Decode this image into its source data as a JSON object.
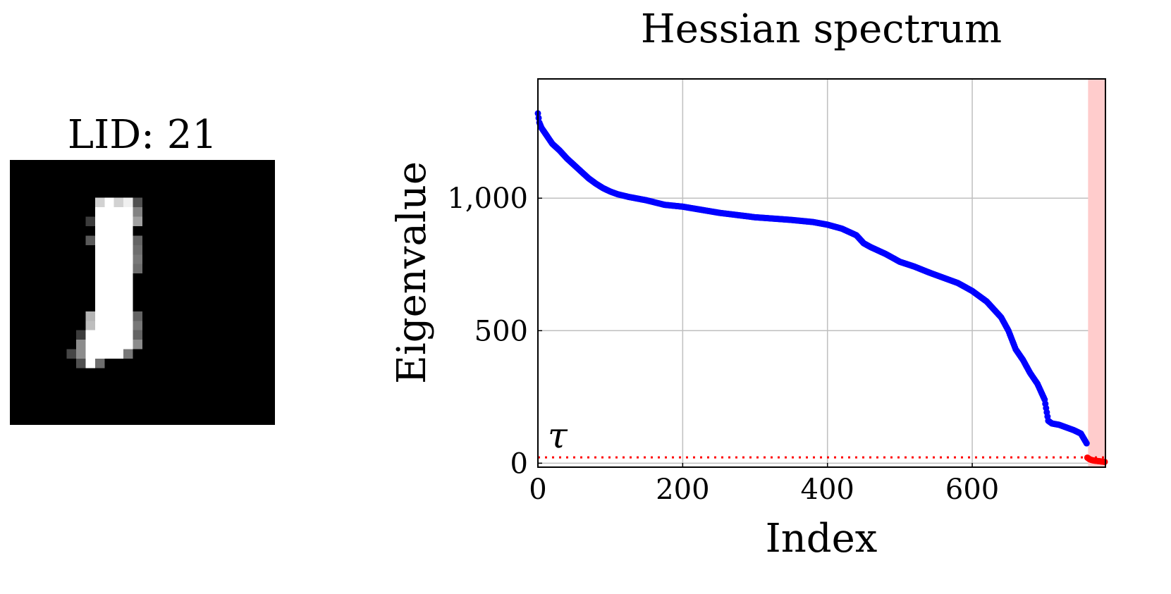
{
  "figure": {
    "left_title": "LID: 21",
    "threshold_label": "τ"
  },
  "colors": {
    "curve": "#0000ff",
    "low_curve": "#ff0000",
    "highlight": "#ffcccc",
    "threshold": "#ff0000",
    "grid": "#bfbfbf"
  },
  "digit": {
    "description_kind": "grayscale-pixel-image",
    "size": [
      28,
      28
    ],
    "pixels": [
      [
        6,
        4,
        210
      ],
      [
        6,
        5,
        255
      ],
      [
        6,
        6,
        210
      ],
      [
        6,
        7,
        240
      ],
      [
        7,
        4,
        255
      ],
      [
        7,
        5,
        255
      ],
      [
        7,
        6,
        255
      ],
      [
        7,
        7,
        255
      ],
      [
        7,
        8,
        130
      ],
      [
        8,
        4,
        255
      ],
      [
        8,
        5,
        255
      ],
      [
        8,
        6,
        255
      ],
      [
        8,
        7,
        255
      ],
      [
        8,
        8,
        160
      ],
      [
        9,
        4,
        255
      ],
      [
        9,
        5,
        255
      ],
      [
        9,
        6,
        255
      ],
      [
        9,
        7,
        255
      ],
      [
        10,
        4,
        255
      ],
      [
        10,
        5,
        255
      ],
      [
        10,
        6,
        255
      ],
      [
        10,
        7,
        255
      ],
      [
        11,
        4,
        255
      ],
      [
        11,
        5,
        255
      ],
      [
        11,
        6,
        255
      ],
      [
        11,
        7,
        255
      ],
      [
        12,
        4,
        255
      ],
      [
        12,
        5,
        255
      ],
      [
        12,
        6,
        255
      ],
      [
        12,
        7,
        255
      ],
      [
        13,
        4,
        255
      ],
      [
        13,
        5,
        255
      ],
      [
        13,
        6,
        255
      ],
      [
        13,
        7,
        255
      ],
      [
        14,
        4,
        255
      ],
      [
        14,
        5,
        255
      ],
      [
        14,
        6,
        255
      ],
      [
        14,
        7,
        255
      ],
      [
        15,
        4,
        255
      ],
      [
        15,
        5,
        255
      ],
      [
        15,
        6,
        255
      ],
      [
        15,
        7,
        255
      ],
      [
        16,
        4,
        255
      ],
      [
        16,
        5,
        255
      ],
      [
        16,
        6,
        255
      ],
      [
        16,
        7,
        255
      ],
      [
        17,
        4,
        255
      ],
      [
        17,
        5,
        255
      ],
      [
        17,
        6,
        255
      ],
      [
        17,
        7,
        255
      ],
      [
        18,
        4,
        255
      ],
      [
        18,
        5,
        255
      ],
      [
        18,
        6,
        255
      ],
      [
        18,
        7,
        255
      ],
      [
        19,
        3,
        190
      ],
      [
        19,
        4,
        255
      ],
      [
        19,
        5,
        255
      ],
      [
        19,
        6,
        255
      ],
      [
        19,
        7,
        255
      ],
      [
        20,
        3,
        255
      ],
      [
        20,
        4,
        255
      ],
      [
        20,
        5,
        255
      ],
      [
        20,
        6,
        255
      ],
      [
        20,
        7,
        255
      ],
      [
        21,
        2,
        140
      ],
      [
        21,
        3,
        255
      ],
      [
        21,
        4,
        255
      ],
      [
        21,
        5,
        255
      ],
      [
        21,
        6,
        255
      ],
      [
        21,
        7,
        255
      ],
      [
        21,
        8,
        140
      ],
      [
        22,
        2,
        140
      ],
      [
        22,
        3,
        255
      ],
      [
        22,
        4,
        255
      ],
      [
        22,
        5,
        255
      ],
      [
        22,
        6,
        255
      ],
      [
        23,
        3,
        255
      ],
      [
        23,
        4,
        110
      ]
    ],
    "edge_pixels": [
      [
        6,
        8,
        80
      ],
      [
        7,
        3,
        0
      ],
      [
        8,
        3,
        60
      ],
      [
        10,
        3,
        90
      ],
      [
        10,
        8,
        100
      ],
      [
        11,
        8,
        110
      ],
      [
        12,
        8,
        120
      ],
      [
        13,
        8,
        110
      ],
      [
        18,
        3,
        180
      ],
      [
        18,
        8,
        100
      ],
      [
        19,
        8,
        120
      ],
      [
        20,
        8,
        100
      ],
      [
        20,
        2,
        60
      ],
      [
        21,
        1,
        0
      ],
      [
        22,
        1,
        70
      ],
      [
        22,
        7,
        120
      ],
      [
        23,
        2,
        80
      ],
      [
        23,
        5,
        0
      ]
    ]
  },
  "chart_data": {
    "type": "scatter",
    "title": "Hessian spectrum",
    "xlabel": "Index",
    "ylabel": "Eigenvalue",
    "xlim": [
      0,
      784
    ],
    "ylim": [
      -15,
      1450
    ],
    "x_ticks": [
      0,
      200,
      400,
      600
    ],
    "x_tick_labels": [
      "0",
      "200",
      "400",
      "600"
    ],
    "y_ticks": [
      0,
      500,
      1000
    ],
    "y_tick_labels": [
      "0",
      "500",
      "1,000"
    ],
    "grid": true,
    "threshold": 22,
    "highlight_x_range": [
      760,
      784
    ],
    "series": [
      {
        "key": "main",
        "x": [
          0,
          2,
          5,
          10,
          20,
          30,
          40,
          50,
          60,
          70,
          80,
          90,
          100,
          110,
          125,
          150,
          175,
          200,
          250,
          300,
          350,
          380,
          400,
          420,
          440,
          450,
          460,
          480,
          500,
          520,
          540,
          560,
          580,
          600,
          620,
          640,
          650,
          660,
          670,
          680,
          690,
          700,
          705,
          710,
          720,
          730,
          740,
          750,
          758
        ],
        "y": [
          1320,
          1285,
          1265,
          1245,
          1205,
          1180,
          1150,
          1125,
          1100,
          1075,
          1055,
          1038,
          1025,
          1015,
          1005,
          992,
          975,
          968,
          945,
          928,
          918,
          910,
          900,
          885,
          860,
          830,
          815,
          790,
          760,
          742,
          720,
          700,
          680,
          650,
          610,
          550,
          500,
          430,
          390,
          340,
          300,
          240,
          160,
          150,
          145,
          135,
          125,
          112,
          75
        ]
      },
      {
        "key": "low",
        "x": [
          759,
          762,
          765,
          768,
          771,
          774,
          777,
          780,
          783
        ],
        "y": [
          21,
          15,
          12,
          10,
          9,
          8,
          7,
          6,
          5
        ]
      }
    ]
  }
}
